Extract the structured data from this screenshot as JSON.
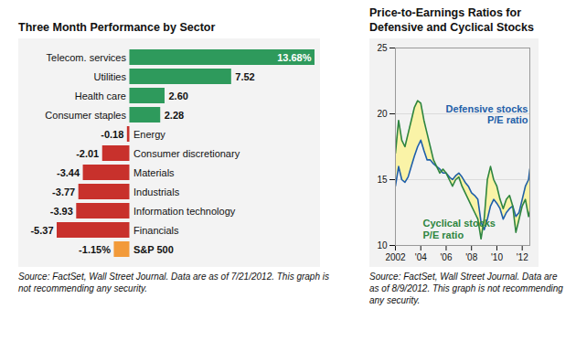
{
  "chart_data": [
    {
      "type": "bar",
      "title": "Three Month Performance by Sector",
      "caption": "Source: FactSet, Wall Street Journal. Data are as of 7/21/2012. This graph is not recommending any security.",
      "orientation": "horizontal",
      "categories": [
        "Telecom. services",
        "Utilities",
        "Health care",
        "Consumer staples",
        "Energy",
        "Consumer discretionary",
        "Materials",
        "Industrials",
        "Information technology",
        "Financials",
        "S&P 500"
      ],
      "values": [
        13.68,
        7.52,
        2.6,
        2.28,
        -0.18,
        -2.01,
        -3.44,
        -3.77,
        -3.93,
        -5.37,
        -1.15
      ],
      "value_labels": [
        "13.68%",
        "7.52",
        "2.60",
        "2.28",
        "-0.18",
        "-2.01",
        "-3.44",
        "-3.77",
        "-3.93",
        "-5.37",
        "-1.15%"
      ],
      "colors": [
        "#2e9a5c",
        "#2e9a5c",
        "#2e9a5c",
        "#2e9a5c",
        "#c8312c",
        "#c8312c",
        "#c8312c",
        "#c8312c",
        "#c8312c",
        "#c8312c",
        "#f29a3a"
      ],
      "data_labels": true,
      "tick_labels": "y"
    },
    {
      "type": "line",
      "title": "Price-to-Earnings Ratios for Defensive and Cyclical Stocks",
      "caption": "Source: FactSet, Wall Street Journal. Data are as of 8/9/2012. This graph is not recommending any security.",
      "x": [
        2002,
        2002.25,
        2002.5,
        2002.75,
        2003,
        2003.25,
        2003.5,
        2003.75,
        2004,
        2004.25,
        2004.5,
        2004.75,
        2005,
        2005.25,
        2005.5,
        2005.75,
        2006,
        2006.25,
        2006.5,
        2006.75,
        2007,
        2007.25,
        2007.5,
        2007.75,
        2008,
        2008.25,
        2008.5,
        2008.75,
        2009,
        2009.25,
        2009.5,
        2009.75,
        2010,
        2010.25,
        2010.5,
        2010.75,
        2011,
        2011.25,
        2011.5,
        2011.75,
        2012,
        2012.25,
        2012.5,
        2012.6
      ],
      "series": [
        {
          "name": "Defensive stocks P/E ratio",
          "color": "#1f5fa8",
          "values": [
            14.5,
            16.0,
            15.0,
            14.8,
            15.2,
            16.0,
            16.8,
            17.5,
            18.0,
            17.2,
            16.5,
            16.5,
            16.2,
            16.0,
            15.8,
            15.5,
            15.5,
            15.2,
            15.0,
            15.3,
            15.5,
            15.2,
            14.8,
            14.5,
            14.0,
            13.8,
            13.5,
            11.8,
            11.2,
            12.0,
            13.0,
            13.5,
            13.2,
            12.8,
            12.0,
            12.5,
            12.8,
            13.0,
            12.2,
            12.5,
            13.5,
            14.5,
            15.0,
            15.8
          ]
        },
        {
          "name": "Cyclical stocks P/E ratio",
          "color": "#2e8540",
          "values": [
            17.0,
            19.5,
            18.0,
            17.5,
            18.5,
            19.5,
            20.5,
            21.0,
            20.8,
            19.5,
            18.5,
            17.5,
            16.5,
            16.0,
            15.5,
            15.8,
            15.5,
            15.0,
            14.5,
            15.0,
            15.2,
            14.5,
            14.0,
            13.5,
            13.0,
            12.5,
            12.0,
            10.5,
            12.0,
            15.0,
            16.0,
            15.0,
            14.5,
            13.5,
            12.8,
            13.5,
            13.8,
            13.0,
            11.0,
            12.0,
            13.0,
            13.5,
            12.2,
            12.6
          ]
        }
      ],
      "xlim": [
        2002,
        2012.6
      ],
      "xticks": [
        {
          "value": 2002,
          "label": "2002"
        },
        {
          "value": 2004,
          "label": "'04"
        },
        {
          "value": 2006,
          "label": "'06"
        },
        {
          "value": 2008,
          "label": "'08"
        },
        {
          "value": 2010,
          "label": "'10"
        },
        {
          "value": 2012,
          "label": "'12"
        }
      ],
      "ylim": [
        10,
        25
      ],
      "yticks": [
        10,
        15,
        20,
        25
      ],
      "grid": true
    }
  ]
}
